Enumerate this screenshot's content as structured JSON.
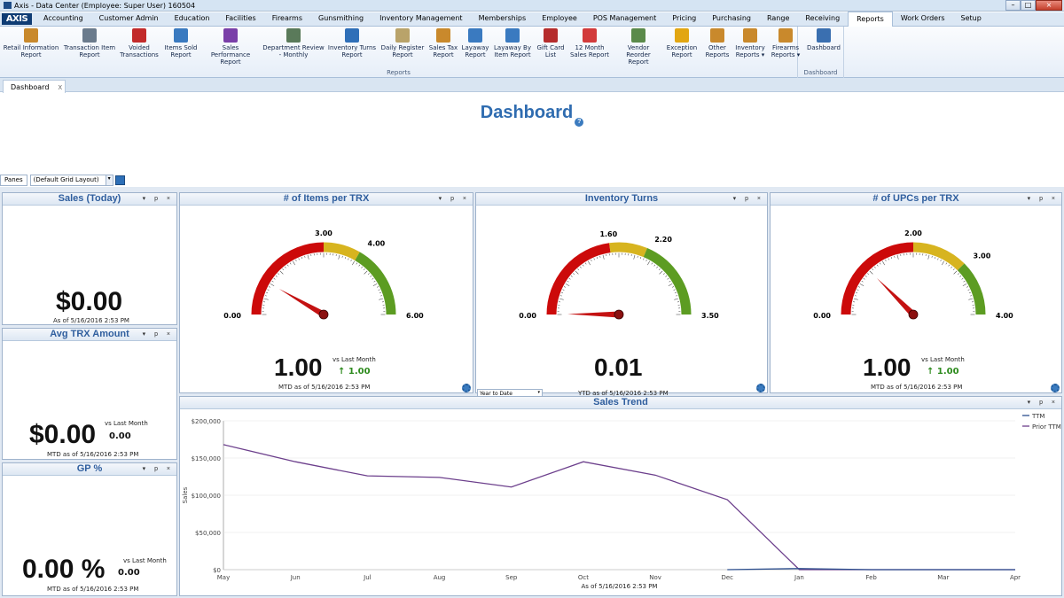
{
  "window": {
    "title": "Axis - Data Center  (Employee: Super User) 160504"
  },
  "menu": {
    "logo": "AXIS",
    "items": [
      "Accounting",
      "Customer Admin",
      "Education",
      "Facilities",
      "Firearms",
      "Gunsmithing",
      "Inventory Management",
      "Memberships",
      "Employee",
      "POS Management",
      "Pricing",
      "Purchasing",
      "Range",
      "Receiving",
      "Reports",
      "Work Orders",
      "Setup"
    ],
    "active": "Reports"
  },
  "ribbon": {
    "reports_group_label": "Reports",
    "dashboard_group_label": "Dashboard",
    "buttons": [
      {
        "l1": "Retail Information",
        "l2": "Report",
        "icon": "report-icon",
        "color": "#c9892c"
      },
      {
        "l1": "Transaction Item",
        "l2": "Report",
        "icon": "item-icon",
        "color": "#6b7b8c"
      },
      {
        "l1": "Voided",
        "l2": "Transactions",
        "icon": "voided-icon",
        "color": "#c22a2a"
      },
      {
        "l1": "Items Sold",
        "l2": "Report",
        "icon": "bars-icon",
        "color": "#3a7ac0"
      },
      {
        "l1": "Sales Performance",
        "l2": "Report",
        "icon": "chart-icon",
        "color": "#7a3fa8"
      },
      {
        "l1": "Department Review",
        "l2": "- Monthly",
        "icon": "review-icon",
        "color": "#5a7a5a"
      },
      {
        "l1": "Inventory Turns",
        "l2": "Report",
        "icon": "turns-icon",
        "color": "#2f6fb8"
      },
      {
        "l1": "Daily Register",
        "l2": "Report",
        "icon": "register-icon",
        "color": "#b9a36a"
      },
      {
        "l1": "Sales Tax",
        "l2": "Report",
        "icon": "tax-icon",
        "color": "#c9892c"
      },
      {
        "l1": "Layaway",
        "l2": "Report",
        "icon": "layaway-icon",
        "color": "#3a7ac0"
      },
      {
        "l1": "Layaway By",
        "l2": "Item Report",
        "icon": "layaway-item-icon",
        "color": "#3a7ac0"
      },
      {
        "l1": "Gift Card",
        "l2": "List",
        "icon": "giftcard-icon",
        "color": "#b52c2c"
      },
      {
        "l1": "12 Month",
        "l2": "Sales Report",
        "icon": "calendar-icon",
        "color": "#d23b3b"
      },
      {
        "l1": "Vendor Reorder",
        "l2": "Report",
        "icon": "vendor-icon",
        "color": "#5b8a4a"
      },
      {
        "l1": "Exception",
        "l2": "Report",
        "icon": "warning-icon",
        "color": "#e2a612"
      },
      {
        "l1": "Other",
        "l2": "Reports",
        "icon": "other-icon",
        "color": "#c9892c"
      },
      {
        "l1": "Inventory",
        "l2": "Reports ▾",
        "icon": "inventory-icon",
        "color": "#c9892c"
      },
      {
        "l1": "Firearms",
        "l2": "Reports ▾",
        "icon": "firearms-icon",
        "color": "#c9892c"
      },
      {
        "l1": "Dashboard",
        "l2": "",
        "icon": "dashboard-icon",
        "color": "#3a6fb0"
      }
    ]
  },
  "tabs": [
    {
      "label": "Dashboard",
      "close": "X"
    }
  ],
  "page": {
    "title": "Dashboard",
    "help": "?"
  },
  "panes": {
    "button": "Panes",
    "layout": "(Default Grid Layout)"
  },
  "panels": {
    "sales_today": {
      "title": "Sales (Today)",
      "value": "$0.00",
      "asof": "As of 5/16/2016 2:53 PM"
    },
    "avg_trx": {
      "title": "Avg TRX Amount",
      "value": "$0.00",
      "vs": "vs Last Month",
      "delta": "0.00",
      "asof": "MTD as of 5/16/2016 2:53 PM"
    },
    "gp": {
      "title": "GP %",
      "value": "0.00 %",
      "vs": "vs Last Month",
      "delta": "0.00",
      "asof": "MTD as of 5/16/2016 2:53 PM"
    },
    "items_per_trx": {
      "title": "# of Items per TRX",
      "min": "0.00",
      "t1": "3.00",
      "t2": "4.00",
      "max": "6.00",
      "value": "1.00",
      "vs": "vs Last Month",
      "delta": "↑ 1.00",
      "asof": "MTD as of 5/16/2016 2:53 PM"
    },
    "inv_turns": {
      "title": "Inventory Turns",
      "min": "0.00",
      "t1": "1.60",
      "t2": "2.20",
      "max": "3.50",
      "value": "0.01",
      "asof": "YTD as of 5/16/2016 2:53 PM",
      "period": "Year to Date"
    },
    "upcs_per_trx": {
      "title": "# of UPCs per TRX",
      "min": "0.00",
      "t1": "2.00",
      "t2": "3.00",
      "max": "4.00",
      "value": "1.00",
      "vs": "vs Last Month",
      "delta": "↑ 1.00",
      "asof": "MTD as of 5/16/2016 2:53 PM"
    },
    "pane_controls": "▾ p ×"
  },
  "gauges": [
    {
      "min": 0,
      "max": 6,
      "t1": 3,
      "t2": 4,
      "value": 1
    },
    {
      "min": 0,
      "max": 3.5,
      "t1": 1.6,
      "t2": 2.2,
      "value": 0.01
    },
    {
      "min": 0,
      "max": 4,
      "t1": 2,
      "t2": 3,
      "value": 1
    }
  ],
  "colors": {
    "red": "#cc0a0a",
    "yellow": "#d7b41f",
    "green": "#5c9c22",
    "needle": "#c41212",
    "accent": "#2f6cb0",
    "ttm": "#2d4f8e",
    "prior": "#6c3f8c"
  },
  "chart_data": {
    "type": "line",
    "title": "Sales Trend",
    "xlabel": "As of 5/16/2016 2:53 PM",
    "ylabel": "Sales",
    "categories": [
      "May",
      "Jun",
      "Jul",
      "Aug",
      "Sep",
      "Oct",
      "Nov",
      "Dec",
      "Jan",
      "Feb",
      "Mar",
      "Apr"
    ],
    "yticks": [
      "$0",
      "$50,000",
      "$100,000",
      "$150,000",
      "$200,000"
    ],
    "ylim": [
      0,
      200000
    ],
    "legend": "top-right",
    "series": [
      {
        "name": "TTM",
        "values": [
          null,
          null,
          null,
          null,
          null,
          null,
          null,
          0,
          1500,
          0,
          0,
          0
        ],
        "color": "#2d4f8e"
      },
      {
        "name": "Prior TTM",
        "values": [
          168000,
          145000,
          126000,
          124000,
          111000,
          145000,
          127000,
          94000,
          0,
          0,
          0,
          0
        ],
        "color": "#6c3f8c"
      }
    ]
  }
}
